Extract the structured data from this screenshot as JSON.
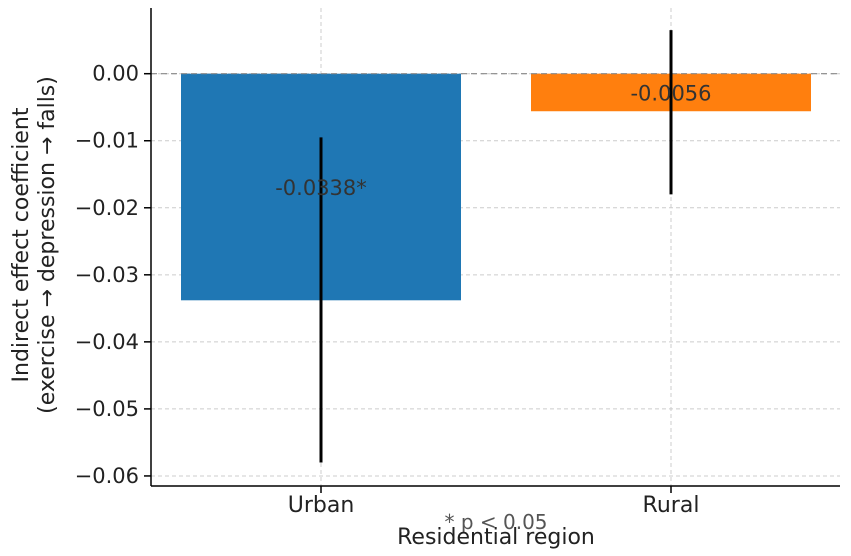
{
  "chart_data": {
    "type": "bar",
    "categories": [
      "Urban",
      "Rural"
    ],
    "values": [
      -0.0338,
      -0.0056
    ],
    "error_low": [
      -0.058,
      -0.018
    ],
    "error_high": [
      -0.0095,
      0.0065
    ],
    "data_labels": [
      "-0.0338*",
      "-0.0056"
    ],
    "colors": [
      "#1f77b4",
      "#ff7f0e"
    ],
    "xlabel": "Residential region",
    "ylabel_line1": "Indirect effect coefficient",
    "ylabel_line2": "(exercise → depression → falls)",
    "ylim": [
      -0.0615,
      0.0098
    ],
    "yticks": [
      0.0,
      -0.01,
      -0.02,
      -0.03,
      -0.04,
      -0.05,
      -0.06
    ],
    "ytick_labels": [
      "0.00",
      "−0.01",
      "−0.02",
      "−0.03",
      "−0.04",
      "−0.05",
      "−0.06"
    ],
    "reference_line": 0,
    "grid": true,
    "note": "* p < 0.05"
  }
}
